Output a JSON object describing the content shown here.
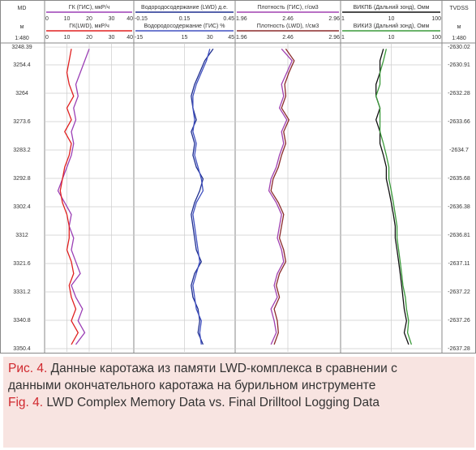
{
  "chart_data": {
    "type": "well-log",
    "depth_title": "MD",
    "depth_unit": "м",
    "depth_scale": "1:480",
    "ylim": [
      3247,
      3351.5
    ],
    "yticks": [
      3248.39,
      3254.4,
      3264,
      3273.6,
      3283.2,
      3292.8,
      3302.4,
      3312,
      3321.6,
      3331.2,
      3340.8,
      3350.4
    ],
    "tvdss_title": "TVDSS",
    "tvdss_unit": "м",
    "tvdss_scale": "1:480",
    "tvdss_ticks": [
      -2630.02,
      -2630.91,
      -2632.28,
      -2633.66,
      -2634.7,
      -2635.68,
      -2636.38,
      -2636.81,
      -2637.11,
      -2637.22,
      -2637.26,
      -2637.28
    ],
    "depths": [
      3249,
      3253,
      3257,
      3261,
      3265,
      3269,
      3273,
      3277,
      3281,
      3285,
      3289,
      3293,
      3297,
      3301,
      3305,
      3309,
      3313,
      3317,
      3321,
      3325,
      3329,
      3333,
      3337,
      3341,
      3345,
      3349
    ],
    "tracks": [
      {
        "series": [
          {
            "name": "ГК (ГИС), мкР/ч",
            "color": "#9b3fb5",
            "xlim": [
              0,
              40
            ],
            "xticks": [
              0,
              10,
              20,
              30,
              40
            ],
            "values": [
              20,
              18,
              16,
              14,
              15,
              13,
              14,
              12,
              13,
              12,
              10,
              8,
              6,
              9,
              12,
              11,
              13,
              12,
              14,
              16,
              12,
              14,
              17,
              15,
              18,
              14
            ]
          },
          {
            "name": "ГК(LWD), мкР/ч",
            "color": "#e02020",
            "xlim": [
              0,
              40
            ],
            "xticks": [
              0,
              10,
              20,
              30,
              40
            ],
            "values": [
              12,
              11,
              10,
              11,
              13,
              10,
              12,
              9,
              12,
              11,
              9,
              8,
              7,
              8,
              10,
              11,
              11,
              10,
              12,
              13,
              11,
              12,
              14,
              12,
              15,
              12
            ]
          }
        ]
      },
      {
        "series": [
          {
            "name": "Водородосодержание (LWD) д.е.",
            "color": "#1f2f8f",
            "xlim": [
              -0.15,
              0.45
            ],
            "xticks": [
              -0.15,
              0.15,
              0.45
            ],
            "values": [
              0.32,
              0.27,
              0.24,
              0.21,
              0.19,
              0.2,
              0.22,
              0.19,
              0.21,
              0.2,
              0.22,
              0.26,
              0.24,
              0.21,
              0.19,
              0.2,
              0.21,
              0.22,
              0.25,
              0.21,
              0.19,
              0.2,
              0.23,
              0.24,
              0.23,
              0.26
            ]
          },
          {
            "name": "Водородосодержание (ГИС) %",
            "color": "#4050c0",
            "xlim": [
              -15,
              45
            ],
            "xticks": [
              -15,
              15,
              30,
              45
            ],
            "values": [
              30,
              28,
              25,
              22,
              20,
              20,
              21,
              20,
              22,
              21,
              23,
              25,
              26,
              22,
              20,
              21,
              22,
              23,
              24,
              22,
              20,
              21,
              22,
              25,
              24,
              25
            ]
          }
        ]
      },
      {
        "series": [
          {
            "name": "Плотность (ГИС), г/см3",
            "color": "#a040b0",
            "xlim": [
              1.96,
              2.96
            ],
            "xticks": [
              1.96,
              2.46,
              2.96
            ],
            "values": [
              2.4,
              2.5,
              2.45,
              2.4,
              2.42,
              2.38,
              2.45,
              2.4,
              2.42,
              2.38,
              2.35,
              2.3,
              2.28,
              2.35,
              2.4,
              2.38,
              2.36,
              2.4,
              2.42,
              2.36,
              2.33,
              2.36,
              2.3,
              2.33,
              2.35,
              2.3
            ]
          },
          {
            "name": "Плотность (LWD), г/см3",
            "color": "#8b2a2a",
            "xlim": [
              1.96,
              2.96
            ],
            "xticks": [
              1.96,
              2.46,
              2.96
            ],
            "values": [
              2.44,
              2.52,
              2.47,
              2.43,
              2.44,
              2.4,
              2.47,
              2.42,
              2.44,
              2.4,
              2.37,
              2.32,
              2.3,
              2.37,
              2.42,
              2.4,
              2.38,
              2.42,
              2.44,
              2.38,
              2.35,
              2.38,
              2.33,
              2.36,
              2.37,
              2.33
            ]
          }
        ]
      },
      {
        "series": [
          {
            "name": "ВИКПБ (Дальний зонд), Омм",
            "color": "#111111",
            "xlim": [
              1,
              100
            ],
            "xticks": [
              1,
              10,
              100
            ],
            "log": true,
            "values": [
              7,
              6,
              6,
              5,
              5,
              6,
              5,
              6,
              6,
              7,
              8,
              8,
              9,
              10,
              11,
              12,
              12,
              13,
              14,
              15,
              16,
              17,
              18,
              20,
              18,
              22
            ]
          },
          {
            "name": "ВИКИЗ (Дальний зонд), Омм",
            "color": "#3a9a3a",
            "xlim": [
              1,
              100
            ],
            "xticks": [
              1,
              10,
              100
            ],
            "log": true,
            "values": [
              8,
              7,
              6,
              6,
              5,
              6,
              6,
              6,
              7,
              8,
              9,
              9,
              10,
              11,
              12,
              13,
              13,
              14,
              15,
              16,
              17,
              19,
              20,
              22,
              21,
              25
            ]
          }
        ]
      }
    ]
  },
  "caption": {
    "ru_label": "Рис. 4.",
    "ru_text": "Данные каротажа из памяти LWD-комплекса в сравнении с данными окончательного каротажа на бурильном инструменте",
    "en_label": "Fig. 4.",
    "en_text": "LWD Complex Memory Data vs. Final Drilltool Logging Data"
  }
}
